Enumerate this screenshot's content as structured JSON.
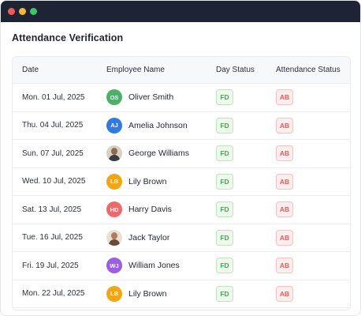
{
  "window": {
    "title_dots": [
      "red",
      "yellow",
      "green"
    ]
  },
  "page": {
    "title": "Attendance Verification"
  },
  "table": {
    "columns": {
      "date": "Date",
      "employee": "Employee Name",
      "day_status": "Day Status",
      "attendance_status": "Attendance Status"
    },
    "rows": [
      {
        "date": "Mon. 01 Jul, 2025",
        "initials": "OS",
        "avatar_color": "#4caf6a",
        "avatar_type": "initials",
        "name": "Oliver Smith",
        "day_status": "FD",
        "attendance_status": "AB"
      },
      {
        "date": "Thu. 04 Jul, 2025",
        "initials": "AJ",
        "avatar_color": "#2f7be0",
        "avatar_type": "initials",
        "name": "Amelia Johnson",
        "day_status": "FD",
        "attendance_status": "AB"
      },
      {
        "date": "Sun. 07 Jul, 2025",
        "initials": "",
        "avatar_color": "#d9cfc4",
        "avatar_type": "photo",
        "name": "George Williams",
        "day_status": "FD",
        "attendance_status": "AB"
      },
      {
        "date": "Wed. 10 Jul, 2025",
        "initials": "LB",
        "avatar_color": "#f2a516",
        "avatar_type": "initials",
        "name": "Lily Brown",
        "day_status": "FD",
        "attendance_status": "AB"
      },
      {
        "date": "Sat. 13 Jul, 2025",
        "initials": "HD",
        "avatar_color": "#ee6a6a",
        "avatar_type": "initials",
        "name": "Harry Davis",
        "day_status": "FD",
        "attendance_status": "AB"
      },
      {
        "date": "Tue. 16 Jul, 2025",
        "initials": "",
        "avatar_color": "#e8e0d2",
        "avatar_type": "photo",
        "name": "Jack Taylor",
        "day_status": "FD",
        "attendance_status": "AB"
      },
      {
        "date": "Fri. 19 Jul, 2025",
        "initials": "WJ",
        "avatar_color": "#9b5de5",
        "avatar_type": "initials",
        "name": "William Jones",
        "day_status": "FD",
        "attendance_status": "AB"
      },
      {
        "date": "Mon. 22 Jul, 2025",
        "initials": "LB",
        "avatar_color": "#f2a516",
        "avatar_type": "initials",
        "name": "Lily Brown",
        "day_status": "FD",
        "attendance_status": "AB"
      }
    ]
  },
  "colors": {
    "titlebar": "#1e2433",
    "fd_text": "#3fa84a",
    "ab_text": "#e45c5c"
  }
}
